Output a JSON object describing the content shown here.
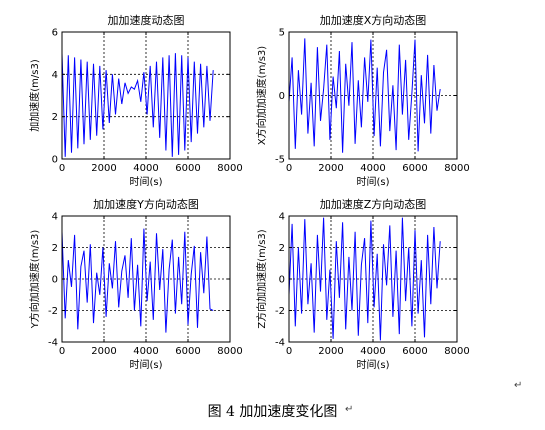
{
  "caption": "图 4  加加速度变化图",
  "paragraph_mark": "↵",
  "chart_data": [
    {
      "type": "line",
      "title": "加加速度动态图",
      "xlabel": "时间(s)",
      "ylabel": "加加速度(m/s3)",
      "xlim": [
        0,
        8000
      ],
      "ylim": [
        0,
        6
      ],
      "xticks": [
        0,
        2000,
        4000,
        6000,
        8000
      ],
      "yticks": [
        0,
        2,
        4,
        6
      ],
      "grid": true,
      "color": "#0000ff",
      "x": [
        0,
        150,
        300,
        450,
        600,
        750,
        900,
        1050,
        1200,
        1350,
        1500,
        1650,
        1800,
        1950,
        2100,
        2250,
        2400,
        2550,
        2700,
        2850,
        3000,
        3150,
        3300,
        3450,
        3600,
        3750,
        3900,
        4050,
        4200,
        4350,
        4500,
        4650,
        4800,
        4950,
        5100,
        5250,
        5400,
        5550,
        5700,
        5850,
        6000,
        6150,
        6300,
        6450,
        6600,
        6750,
        6900,
        7050,
        7200
      ],
      "y": [
        5.0,
        0.1,
        4.9,
        0.3,
        4.8,
        0.5,
        4.7,
        0.7,
        4.6,
        0.9,
        4.5,
        1.1,
        4.4,
        1.4,
        4.2,
        1.7,
        4.0,
        2.1,
        3.8,
        2.6,
        3.6,
        3.1,
        3.4,
        3.3,
        3.7,
        2.7,
        4.1,
        2.1,
        4.4,
        1.5,
        4.6,
        1.0,
        4.8,
        0.4,
        4.9,
        0.1,
        5.0,
        0.2,
        4.9,
        0.4,
        4.8,
        0.8,
        4.6,
        1.2,
        4.5,
        1.5,
        4.4,
        1.8,
        4.2
      ]
    },
    {
      "type": "line",
      "title": "加加速度X方向动态图",
      "xlabel": "时间(s)",
      "ylabel": "X方向加加速度(m/s3)",
      "xlim": [
        0,
        8000
      ],
      "ylim": [
        -5,
        5
      ],
      "xticks": [
        0,
        2000,
        4000,
        6000,
        8000
      ],
      "yticks": [
        -5,
        0,
        5
      ],
      "grid": true,
      "color": "#0000ff",
      "x": [
        0,
        150,
        300,
        450,
        600,
        750,
        900,
        1050,
        1200,
        1350,
        1500,
        1650,
        1800,
        1950,
        2100,
        2250,
        2400,
        2550,
        2700,
        2850,
        3000,
        3150,
        3300,
        3450,
        3600,
        3750,
        3900,
        4050,
        4200,
        4350,
        4500,
        4650,
        4800,
        4950,
        5100,
        5250,
        5400,
        5550,
        5700,
        5850,
        6000,
        6150,
        6300,
        6450,
        6600,
        6750,
        6900,
        7050,
        7200
      ],
      "y": [
        -0.5,
        3.0,
        -4.2,
        2.0,
        -1.5,
        4.5,
        -3.0,
        1.0,
        -4.0,
        3.8,
        -2.0,
        0.5,
        4.0,
        -3.5,
        1.5,
        -1.0,
        3.5,
        -4.5,
        2.5,
        -0.8,
        4.2,
        -3.8,
        1.2,
        -2.5,
        3.0,
        -0.5,
        4.4,
        -3.2,
        2.2,
        -4.0,
        1.8,
        3.6,
        -2.8,
        0.8,
        -4.3,
        4.0,
        -1.5,
        2.8,
        -3.5,
        0.2,
        4.4,
        -4.4,
        1.6,
        -2.2,
        3.2,
        -3.0,
        2.4,
        -1.2,
        0.5
      ]
    },
    {
      "type": "line",
      "title": "加加速度Y方向动态图",
      "xlabel": "时间(s)",
      "ylabel": "Y方向加加速度(m/s3)",
      "xlim": [
        0,
        8000
      ],
      "ylim": [
        -4,
        4
      ],
      "xticks": [
        0,
        2000,
        4000,
        6000,
        8000
      ],
      "yticks": [
        -4,
        -2,
        0,
        2,
        4
      ],
      "grid": true,
      "color": "#0000ff",
      "x": [
        0,
        150,
        300,
        450,
        600,
        750,
        900,
        1050,
        1200,
        1350,
        1500,
        1650,
        1800,
        1950,
        2100,
        2250,
        2400,
        2550,
        2700,
        2850,
        3000,
        3150,
        3300,
        3450,
        3600,
        3750,
        3900,
        4050,
        4200,
        4350,
        4500,
        4650,
        4800,
        4950,
        5100,
        5250,
        5400,
        5550,
        5700,
        5850,
        6000,
        6150,
        6300,
        6450,
        6600,
        6750,
        6900,
        7050,
        7200
      ],
      "y": [
        3.0,
        -2.5,
        1.2,
        -0.5,
        2.8,
        -3.2,
        0.8,
        1.8,
        -1.5,
        2.2,
        -2.8,
        0.4,
        -1.0,
        2.0,
        -2.4,
        1.0,
        -0.6,
        2.4,
        -1.8,
        0.5,
        1.5,
        -1.2,
        2.6,
        -2.0,
        0.9,
        -3.0,
        3.2,
        -1.4,
        1.1,
        -2.6,
        2.9,
        -0.7,
        1.9,
        -3.4,
        0.6,
        2.5,
        -2.2,
        1.4,
        -1.6,
        3.0,
        -2.9,
        0.3,
        2.1,
        -3.1,
        1.7,
        -0.9,
        2.7,
        -1.9,
        -2.0
      ]
    },
    {
      "type": "line",
      "title": "加加速度Z方向动态图",
      "xlabel": "时间(s)",
      "ylabel": "Z方向加加速度(m/s3)",
      "xlim": [
        0,
        8000
      ],
      "ylim": [
        -4,
        4
      ],
      "xticks": [
        0,
        2000,
        4000,
        6000,
        8000
      ],
      "yticks": [
        -4,
        -2,
        0,
        2,
        4
      ],
      "grid": true,
      "color": "#0000ff",
      "x": [
        0,
        150,
        300,
        450,
        600,
        750,
        900,
        1050,
        1200,
        1350,
        1500,
        1650,
        1800,
        1950,
        2100,
        2250,
        2400,
        2550,
        2700,
        2850,
        3000,
        3150,
        3300,
        3450,
        3600,
        3750,
        3900,
        4050,
        4200,
        4350,
        4500,
        4650,
        4800,
        4950,
        5100,
        5250,
        5400,
        5550,
        5700,
        5850,
        6000,
        6150,
        6300,
        6450,
        6600,
        6750,
        6900,
        7050,
        7200
      ],
      "y": [
        -1.0,
        3.5,
        -3.0,
        2.0,
        -2.2,
        3.8,
        -1.6,
        1.0,
        -3.4,
        2.8,
        -0.8,
        3.9,
        -2.6,
        0.6,
        -3.8,
        2.4,
        -1.2,
        3.6,
        -3.2,
        1.4,
        -2.0,
        3.0,
        -3.6,
        0.9,
        2.6,
        -2.8,
        3.7,
        -1.8,
        1.6,
        -3.9,
        2.2,
        -0.4,
        3.4,
        -2.4,
        1.8,
        -3.5,
        3.9,
        -1.4,
        2.0,
        -3.0,
        3.1,
        -2.2,
        1.2,
        -3.7,
        2.8,
        -1.6,
        3.3,
        -0.6,
        2.4
      ]
    }
  ]
}
